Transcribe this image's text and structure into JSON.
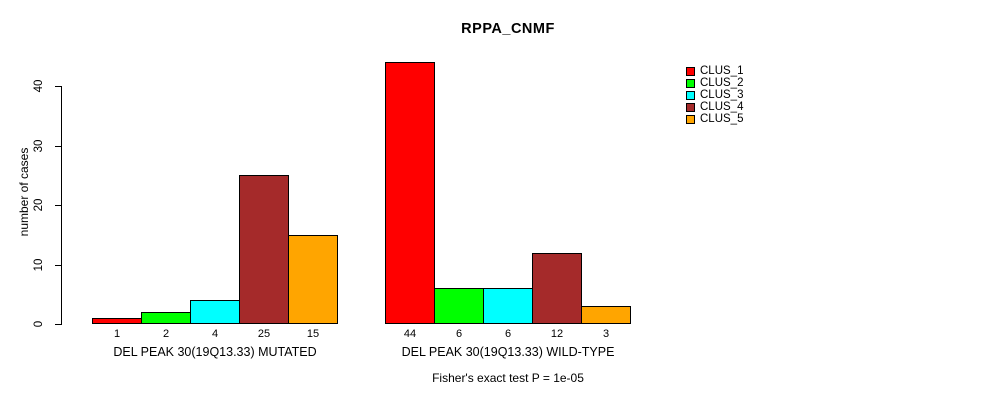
{
  "chart_data": {
    "type": "bar",
    "title": "RPPA_CNMF",
    "ylabel": "number of cases",
    "xlabel": "",
    "ylim": [
      0,
      44
    ],
    "yticks": [
      0,
      10,
      20,
      30,
      40
    ],
    "grid": false,
    "legend_position": "right",
    "legend": [
      {
        "name": "CLUS_1",
        "color": "#FF0000"
      },
      {
        "name": "CLUS_2",
        "color": "#00FF00"
      },
      {
        "name": "CLUS_3",
        "color": "#00FFFF"
      },
      {
        "name": "CLUS_4",
        "color": "#A52A2A"
      },
      {
        "name": "CLUS_5",
        "color": "#FFA500"
      }
    ],
    "groups": [
      {
        "label": "DEL PEAK 30(19Q13.33) MUTATED",
        "values": [
          1,
          2,
          4,
          25,
          15
        ],
        "bar_labels": [
          "1",
          "2",
          "4",
          "25",
          "15"
        ]
      },
      {
        "label": "DEL PEAK 30(19Q13.33) WILD-TYPE",
        "values": [
          44,
          6,
          6,
          12,
          3
        ],
        "bar_labels": [
          "44",
          "6",
          "6",
          "12",
          "3"
        ]
      }
    ],
    "footnote": "Fisher's exact test P = 1e-05"
  }
}
